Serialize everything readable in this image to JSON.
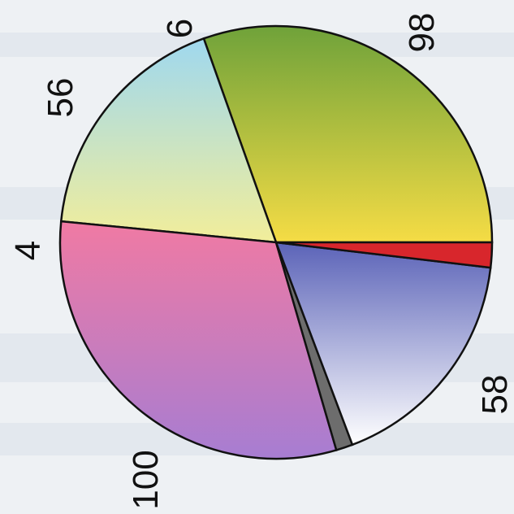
{
  "chart_data": {
    "type": "pie",
    "title": "",
    "slices": [
      {
        "value": 98,
        "label": "98",
        "colors": [
          "#6fa23a",
          "#f5dc45"
        ]
      },
      {
        "value": 58,
        "label": "58",
        "colors": [
          "#9fd8ef",
          "#f2ee9a"
        ]
      },
      {
        "value": 100,
        "label": "100",
        "colors": [
          "#f07aa3",
          "#a77dd2"
        ]
      },
      {
        "value": 4,
        "label": "4",
        "colors": [
          "#6d6d6d",
          "#6d6d6d"
        ]
      },
      {
        "value": 56,
        "label": "56",
        "colors": [
          "#5b63b8",
          "#ffffff"
        ]
      },
      {
        "value": 6,
        "label": "6",
        "colors": [
          "#d8262c",
          "#d8262c"
        ]
      }
    ]
  }
}
